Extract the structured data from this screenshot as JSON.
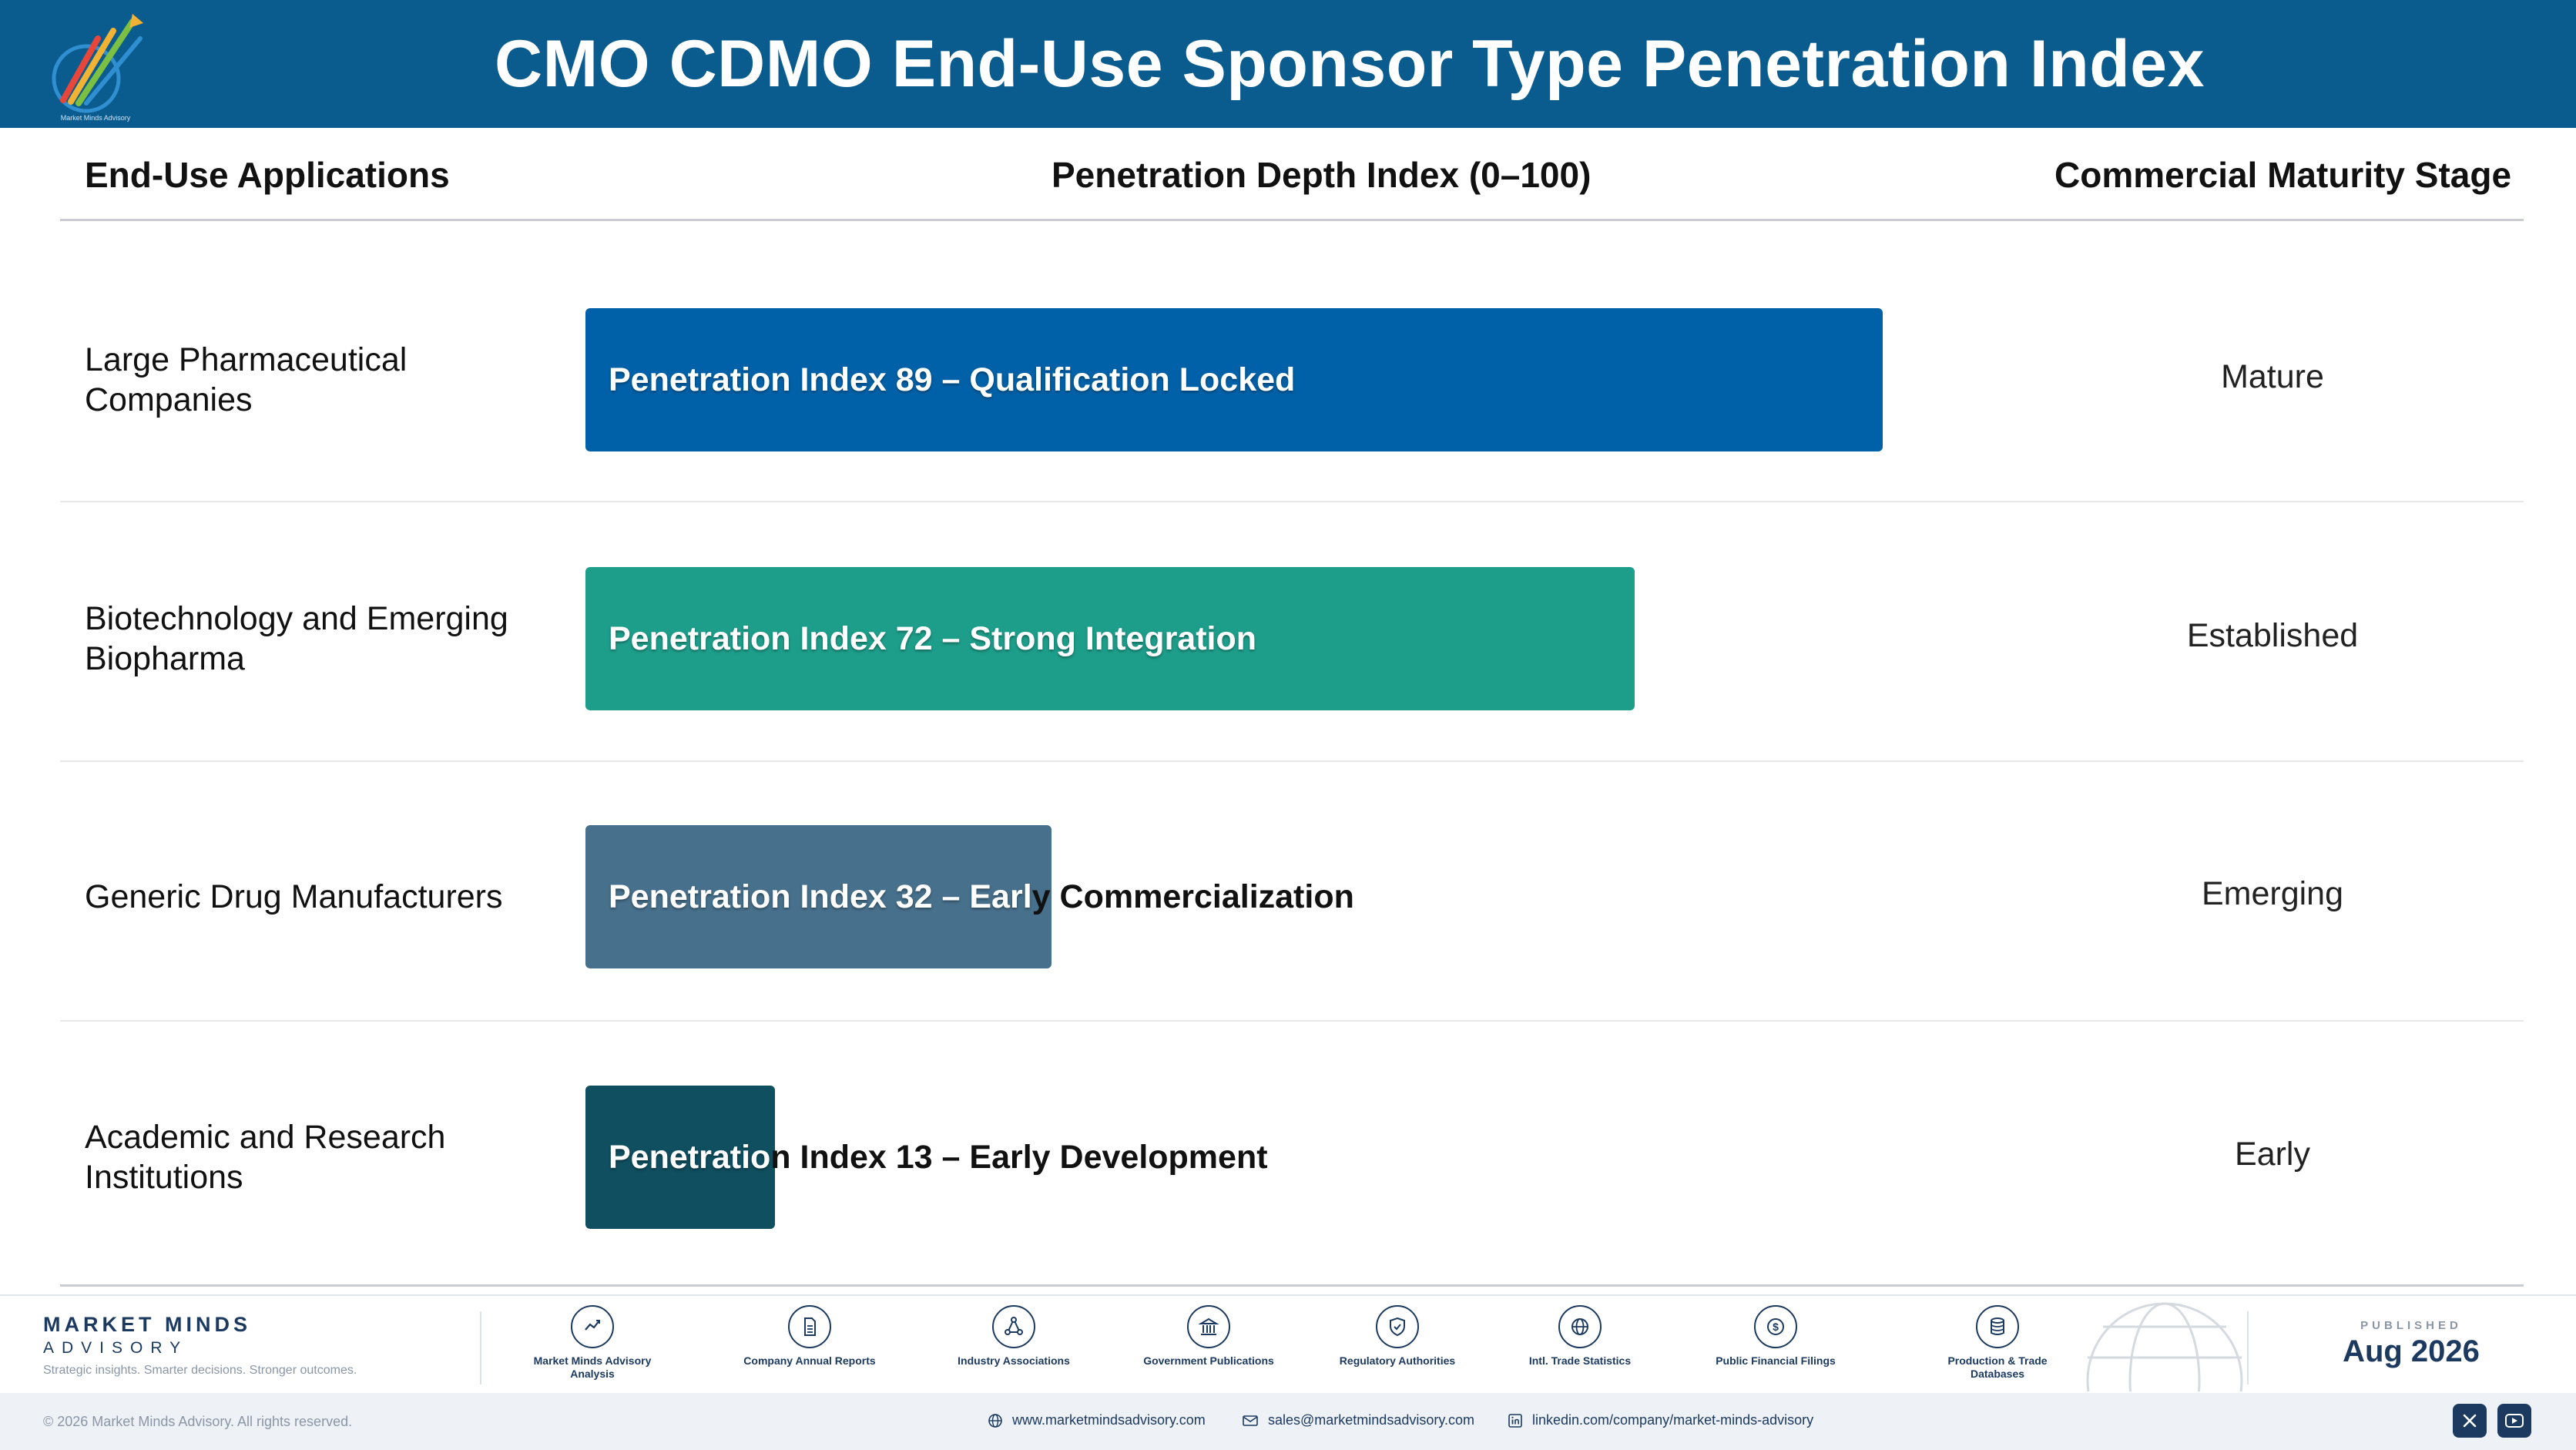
{
  "header": {
    "title": "CMO CDMO End-Use Sponsor Type Penetration Index",
    "logo_text": "Market Minds Advisory"
  },
  "columns": {
    "applications": "End-Use Applications",
    "index": "Penetration Depth Index (0–100)",
    "stage": "Commercial Maturity Stage"
  },
  "chart_data": {
    "type": "bar",
    "orientation": "horizontal",
    "xlim": [
      0,
      100
    ],
    "categories": [
      "Large Pharmaceutical Companies",
      "Biotechnology and Emerging Biopharma",
      "Generic Drug Manufacturers",
      "Academic and Research Institutions"
    ],
    "values": [
      89,
      72,
      32,
      13
    ],
    "bar_labels": [
      "Penetration Index 89 – Qualification Locked",
      "Penetration Index 72 – Strong Integration",
      "Penetration Index 32 – Early Commercialization",
      "Penetration Index 13 – Early Development"
    ],
    "stages": [
      "Mature",
      "Established",
      "Emerging",
      "Early"
    ],
    "colors": [
      "#0061a8",
      "#1d9e8a",
      "#47708c",
      "#0f4f60"
    ]
  },
  "footer": {
    "brand_name": "MARKET MINDS",
    "brand_sub": "ADVISORY",
    "tagline": "Strategic insights. Smarter decisions. Stronger outcomes.",
    "sources": [
      {
        "label": "Market Minds Advisory Analysis",
        "icon": "chart-line-icon"
      },
      {
        "label": "Company Annual Reports",
        "icon": "document-icon"
      },
      {
        "label": "Industry Associations",
        "icon": "network-icon"
      },
      {
        "label": "Government Publications",
        "icon": "government-building-icon"
      },
      {
        "label": "Regulatory Authorities",
        "icon": "shield-check-icon"
      },
      {
        "label": "Intl. Trade Statistics",
        "icon": "globe-icon"
      },
      {
        "label": "Public Financial Filings",
        "icon": "dollar-coin-icon"
      },
      {
        "label": "Production & Trade Databases",
        "icon": "database-icon"
      }
    ],
    "published_label": "PUBLISHED",
    "published_date": "Aug 2026",
    "copyright": "© 2026 Market Minds Advisory. All rights reserved.",
    "website": "www.marketmindsadvisory.com",
    "email": "sales@marketmindsadvisory.com",
    "linkedin": "linkedin.com/company/market-minds-advisory"
  }
}
